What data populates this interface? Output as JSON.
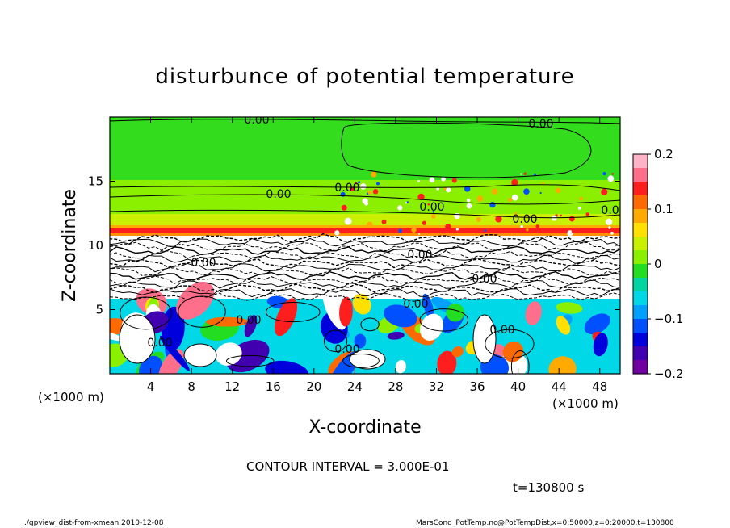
{
  "chart_data": {
    "type": "heatmap",
    "title": "disturbunce of potential temperature",
    "xlabel": "X-coordinate",
    "ylabel": "Z-coordinate",
    "x_unit": "(×1000 m)",
    "y_unit": "(×1000 m)",
    "xlim": [
      0,
      50
    ],
    "ylim": [
      0,
      20
    ],
    "x_ticks": [
      4,
      8,
      12,
      16,
      20,
      24,
      28,
      32,
      36,
      40,
      44,
      48
    ],
    "y_ticks": [
      5,
      10,
      15
    ],
    "colorbar": {
      "range": [
        -0.2,
        0.2
      ],
      "ticks": [
        0.2,
        0.1,
        0,
        -0.1,
        -0.2
      ],
      "tick_labels": [
        "0.2",
        "0.1",
        "0",
        "−0.1",
        "−0.2"
      ],
      "colors": [
        "#ffb3c6",
        "#ff6e8a",
        "#ff1e1e",
        "#ff6a00",
        "#ffaa00",
        "#ffe000",
        "#c8f000",
        "#8af000",
        "#22dd22",
        "#00d4a0",
        "#00d8e8",
        "#00a0ff",
        "#0050ff",
        "#0000dd",
        "#4000b0",
        "#7000a0"
      ]
    },
    "contour_labels": [
      "0.00",
      "0.00",
      "0.00",
      "0.00",
      "0.00",
      "0.00",
      "0.00",
      "0.00",
      "0.00",
      "0.00",
      "0.00",
      "0.00",
      "0.00",
      "0.00",
      "0.00"
    ],
    "contour_interval_text": "CONTOUR INTERVAL = 3.000E-01",
    "time_text": "t=130800 s"
  },
  "footer": {
    "left": "./gpview_dist-from-xmean   2010-12-08",
    "right": "MarsCond_PotTemp.nc@PotTempDist,x=0:50000,z=0:20000,t=130800"
  }
}
